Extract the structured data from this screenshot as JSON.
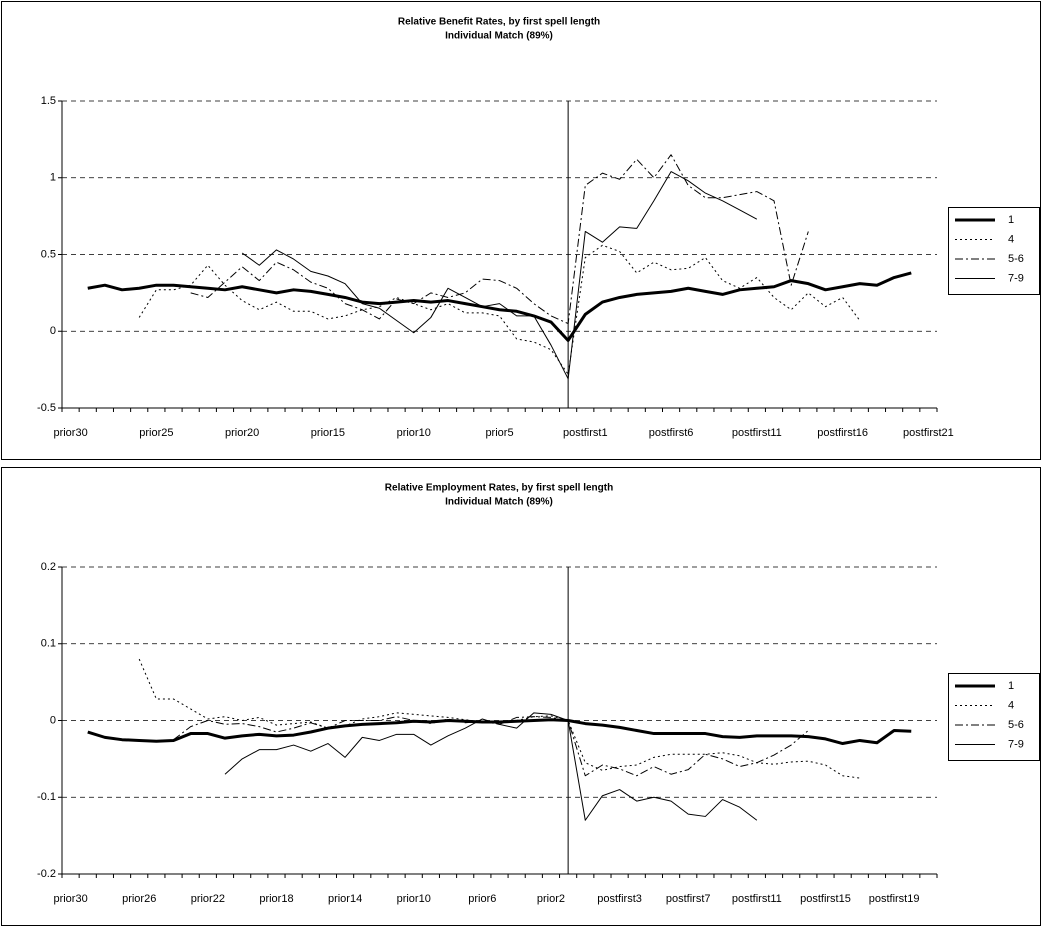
{
  "chart_data": [
    {
      "type": "line",
      "title": "Relative Benefit Rates, by first spell length",
      "subtitle": "Individual Match (89%)",
      "categories": [
        "prior30",
        null,
        null,
        null,
        null,
        "prior25",
        null,
        null,
        null,
        null,
        "prior20",
        null,
        null,
        null,
        null,
        "prior15",
        null,
        null,
        null,
        null,
        "prior10",
        null,
        null,
        null,
        null,
        "prior5",
        null,
        null,
        null,
        null,
        "postfirst1",
        null,
        null,
        null,
        null,
        "postfirst6",
        null,
        null,
        null,
        null,
        "postfirst11",
        null,
        null,
        null,
        null,
        "postfirst16",
        null,
        null,
        null,
        null,
        "postfirst21"
      ],
      "ylim": [
        -0.5,
        1.5
      ],
      "yticks": [
        -0.5,
        0,
        0.5,
        1,
        1.5
      ],
      "grid": true,
      "legend": "right",
      "series": [
        {
          "name": "1",
          "color": "#000000",
          "line_style": "solid",
          "line_width": 3,
          "values": [
            null,
            0.28,
            0.3,
            0.27,
            0.28,
            0.3,
            0.3,
            0.29,
            0.28,
            0.27,
            0.29,
            0.27,
            0.25,
            0.27,
            0.26,
            0.24,
            0.22,
            0.19,
            0.18,
            0.19,
            0.2,
            0.19,
            0.2,
            0.18,
            0.16,
            0.14,
            0.13,
            0.1,
            0.06,
            -0.06,
            0.11,
            0.19,
            0.22,
            0.24,
            0.25,
            0.26,
            0.28,
            0.26,
            0.24,
            0.27,
            0.28,
            0.29,
            0.33,
            0.31,
            0.27,
            0.29,
            0.31,
            0.3,
            0.35,
            0.38,
            null
          ]
        },
        {
          "name": "4",
          "color": "#000000",
          "line_style": "dotted",
          "line_width": 1,
          "values": [
            null,
            null,
            null,
            null,
            0.09,
            0.27,
            0.27,
            0.3,
            0.43,
            0.3,
            0.2,
            0.14,
            0.19,
            0.13,
            0.13,
            0.08,
            0.1,
            0.14,
            0.16,
            0.22,
            0.18,
            0.14,
            0.18,
            0.12,
            0.12,
            0.1,
            -0.05,
            -0.07,
            -0.12,
            -0.28,
            0.48,
            0.56,
            0.52,
            0.38,
            0.45,
            0.4,
            0.41,
            0.48,
            0.33,
            0.28,
            0.35,
            0.22,
            0.14,
            0.25,
            0.16,
            0.22,
            0.07,
            null,
            null,
            null,
            null
          ]
        },
        {
          "name": "5-6",
          "color": "#000000",
          "line_style": "dashdot",
          "line_width": 1,
          "values": [
            null,
            null,
            null,
            null,
            null,
            null,
            null,
            0.25,
            0.22,
            0.32,
            0.42,
            0.33,
            0.45,
            0.4,
            0.32,
            0.28,
            0.18,
            0.14,
            0.08,
            0.21,
            0.18,
            0.25,
            0.22,
            0.25,
            0.34,
            0.33,
            0.28,
            0.18,
            0.1,
            0.05,
            0.95,
            1.03,
            0.99,
            1.12,
            1.0,
            1.15,
            0.95,
            0.87,
            0.87,
            0.89,
            0.91,
            0.85,
            0.3,
            0.65,
            null,
            null,
            null,
            null,
            null,
            null,
            null
          ]
        },
        {
          "name": "7-9",
          "color": "#000000",
          "line_style": "solid",
          "line_width": 1,
          "values": [
            null,
            null,
            null,
            null,
            null,
            null,
            null,
            null,
            null,
            null,
            0.51,
            0.43,
            0.53,
            0.47,
            0.39,
            0.36,
            0.31,
            0.18,
            0.15,
            0.07,
            -0.01,
            0.09,
            0.28,
            0.22,
            0.16,
            0.18,
            0.1,
            0.1,
            -0.09,
            -0.31,
            0.65,
            0.58,
            0.68,
            0.67,
            0.85,
            1.04,
            0.98,
            0.9,
            0.85,
            0.79,
            0.73,
            null,
            null,
            null,
            null,
            null,
            null,
            null,
            null,
            null,
            null
          ]
        }
      ]
    },
    {
      "type": "line",
      "title": "Relative Employment Rates, by first spell length",
      "subtitle": "Individual Match (89%)",
      "categories": [
        "prior30",
        null,
        null,
        null,
        "prior26",
        null,
        null,
        null,
        "prior22",
        null,
        null,
        null,
        "prior18",
        null,
        null,
        null,
        "prior14",
        null,
        null,
        null,
        "prior10",
        null,
        null,
        null,
        "prior6",
        null,
        null,
        null,
        "prior2",
        null,
        null,
        null,
        "postfirst3",
        null,
        null,
        null,
        "postfirst7",
        null,
        null,
        null,
        "postfirst11",
        null,
        null,
        null,
        "postfirst15",
        null,
        null,
        null,
        "postfirst19",
        null,
        null
      ],
      "ylim": [
        -0.2,
        0.2
      ],
      "yticks": [
        -0.2,
        -0.1,
        0,
        0.1,
        0.2
      ],
      "grid": true,
      "legend": "right",
      "series": [
        {
          "name": "1",
          "color": "#000000",
          "line_style": "solid",
          "line_width": 3,
          "values": [
            null,
            -0.015,
            -0.022,
            -0.025,
            -0.026,
            -0.027,
            -0.026,
            -0.017,
            -0.017,
            -0.023,
            -0.02,
            -0.018,
            -0.02,
            -0.019,
            -0.015,
            -0.01,
            -0.007,
            -0.005,
            -0.004,
            -0.003,
            -0.001,
            -0.002,
            0,
            -0.001,
            -0.002,
            -0.002,
            -0.001,
            0,
            0.001,
            0,
            -0.004,
            -0.006,
            -0.009,
            -0.013,
            -0.017,
            -0.017,
            -0.017,
            -0.017,
            -0.021,
            -0.022,
            -0.02,
            -0.02,
            -0.02,
            -0.021,
            -0.024,
            -0.03,
            -0.026,
            -0.029,
            -0.013,
            -0.014,
            null
          ]
        },
        {
          "name": "4",
          "color": "#000000",
          "line_style": "dotted",
          "line_width": 1,
          "values": [
            null,
            null,
            null,
            null,
            0.08,
            0.028,
            0.028,
            0.015,
            0.002,
            0.005,
            0,
            0.004,
            -0.006,
            -0.004,
            -0.002,
            -0.01,
            -0.007,
            0.002,
            0.005,
            0.01,
            0.008,
            0.006,
            0.004,
            0.001,
            -0.002,
            -0.001,
            0,
            0.005,
            0.006,
            0,
            -0.055,
            -0.065,
            -0.06,
            -0.058,
            -0.048,
            -0.044,
            -0.044,
            -0.044,
            -0.042,
            -0.046,
            -0.055,
            -0.057,
            -0.054,
            -0.053,
            -0.058,
            -0.072,
            -0.075,
            null,
            null,
            null,
            null
          ]
        },
        {
          "name": "5-6",
          "color": "#000000",
          "line_style": "dashdot",
          "line_width": 1,
          "values": [
            null,
            null,
            null,
            null,
            null,
            null,
            -0.025,
            -0.008,
            0,
            -0.005,
            -0.004,
            -0.008,
            -0.015,
            -0.01,
            -0.003,
            -0.01,
            0,
            0,
            0,
            0.005,
            0,
            -0.004,
            0.002,
            -0.003,
            -0.001,
            -0.005,
            0.004,
            0.005,
            0.004,
            0,
            -0.072,
            -0.058,
            -0.063,
            -0.072,
            -0.06,
            -0.07,
            -0.064,
            -0.044,
            -0.05,
            -0.06,
            -0.055,
            -0.045,
            -0.032,
            -0.013,
            null,
            null,
            null,
            null,
            null,
            null,
            null
          ]
        },
        {
          "name": "7-9",
          "color": "#000000",
          "line_style": "solid",
          "line_width": 1,
          "values": [
            null,
            null,
            null,
            null,
            null,
            null,
            null,
            null,
            null,
            -0.07,
            -0.05,
            -0.038,
            -0.038,
            -0.032,
            -0.04,
            -0.03,
            -0.048,
            -0.022,
            -0.026,
            -0.018,
            -0.018,
            -0.032,
            -0.02,
            -0.01,
            0.002,
            -0.005,
            -0.01,
            0.01,
            0.008,
            0,
            -0.13,
            -0.098,
            -0.09,
            -0.105,
            -0.1,
            -0.105,
            -0.122,
            -0.125,
            -0.103,
            -0.113,
            -0.13,
            null,
            null,
            null,
            null,
            null,
            null,
            null,
            null,
            null,
            null
          ]
        }
      ]
    }
  ]
}
